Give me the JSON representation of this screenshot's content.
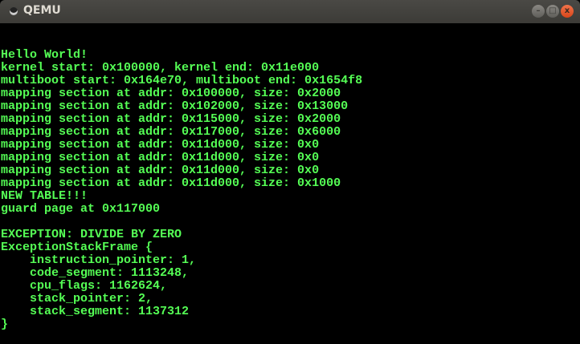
{
  "window": {
    "title": "QEMU",
    "minimize_label": "–",
    "maximize_label": "□",
    "close_label": "x"
  },
  "colors": {
    "text": "#55ff55",
    "background": "#000000",
    "titlebar": "#3c3b37",
    "close": "#e0501f"
  },
  "terminal": {
    "lines": [
      "Hello World!",
      "kernel start: 0x100000, kernel end: 0x11e000",
      "multiboot start: 0x164e70, multiboot end: 0x1654f8",
      "mapping section at addr: 0x100000, size: 0x2000",
      "mapping section at addr: 0x102000, size: 0x13000",
      "mapping section at addr: 0x115000, size: 0x2000",
      "mapping section at addr: 0x117000, size: 0x6000",
      "mapping section at addr: 0x11d000, size: 0x0",
      "mapping section at addr: 0x11d000, size: 0x0",
      "mapping section at addr: 0x11d000, size: 0x0",
      "mapping section at addr: 0x11d000, size: 0x1000",
      "NEW TABLE!!!",
      "guard page at 0x117000",
      "",
      "EXCEPTION: DIVIDE BY ZERO",
      "ExceptionStackFrame {",
      "    instruction_pointer: 1,",
      "    code_segment: 1113248,",
      "    cpu_flags: 1162624,",
      "    stack_pointer: 2,",
      "    stack_segment: 1137312",
      "}"
    ]
  }
}
